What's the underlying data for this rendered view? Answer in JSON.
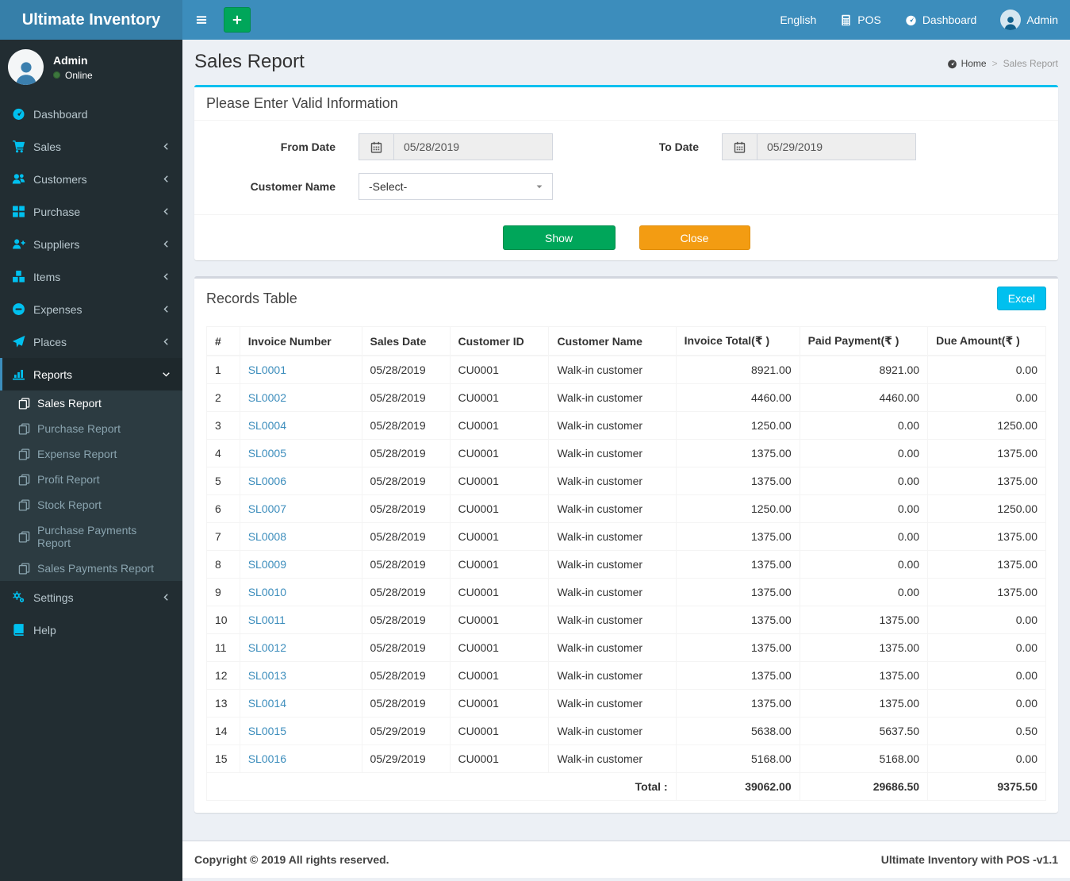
{
  "app": {
    "title": "Ultimate Inventory"
  },
  "navbar": {
    "language": "English",
    "pos_label": "POS",
    "dashboard_label": "Dashboard",
    "user_label": "Admin"
  },
  "user_panel": {
    "name": "Admin",
    "status": "Online"
  },
  "sidebar": {
    "items": [
      {
        "id": "dashboard",
        "label": "Dashboard",
        "icon": "speedometer-icon"
      },
      {
        "id": "sales",
        "label": "Sales",
        "icon": "cart-icon",
        "chevron": "left"
      },
      {
        "id": "customers",
        "label": "Customers",
        "icon": "users-icon",
        "chevron": "left"
      },
      {
        "id": "purchase",
        "label": "Purchase",
        "icon": "grid-icon",
        "chevron": "left"
      },
      {
        "id": "suppliers",
        "label": "Suppliers",
        "icon": "user-plus-icon",
        "chevron": "left"
      },
      {
        "id": "items",
        "label": "Items",
        "icon": "cubes-icon",
        "chevron": "left"
      },
      {
        "id": "expenses",
        "label": "Expenses",
        "icon": "minus-circle-icon",
        "chevron": "left"
      },
      {
        "id": "places",
        "label": "Places",
        "icon": "paper-plane-icon",
        "chevron": "left"
      },
      {
        "id": "reports",
        "label": "Reports",
        "icon": "bar-chart-icon",
        "chevron": "down",
        "active": true,
        "submenu": [
          {
            "id": "sales-report",
            "label": "Sales Report",
            "active": true
          },
          {
            "id": "purchase-report",
            "label": "Purchase Report"
          },
          {
            "id": "expense-report",
            "label": "Expense Report"
          },
          {
            "id": "profit-report",
            "label": "Profit Report"
          },
          {
            "id": "stock-report",
            "label": "Stock Report"
          },
          {
            "id": "purchase-payments-report",
            "label": "Purchase Payments Report"
          },
          {
            "id": "sales-payments-report",
            "label": "Sales Payments Report"
          }
        ]
      },
      {
        "id": "settings",
        "label": "Settings",
        "icon": "gears-icon",
        "chevron": "left"
      },
      {
        "id": "help",
        "label": "Help",
        "icon": "book-icon"
      }
    ]
  },
  "page": {
    "title": "Sales Report",
    "breadcrumb_home": "Home",
    "breadcrumb_sep": ">",
    "breadcrumb_current": "Sales Report"
  },
  "filter": {
    "title": "Please Enter Valid Information",
    "from_date": {
      "label": "From Date",
      "value": "05/28/2019"
    },
    "to_date": {
      "label": "To Date",
      "value": "05/29/2019"
    },
    "customer": {
      "label": "Customer Name",
      "value": "-Select-"
    },
    "show_button": "Show",
    "close_button": "Close"
  },
  "records": {
    "title": "Records Table",
    "excel_button": "Excel",
    "columns": [
      "#",
      "Invoice Number",
      "Sales Date",
      "Customer ID",
      "Customer Name",
      "Invoice Total(₹ )",
      "Paid Payment(₹ )",
      "Due Amount(₹ )"
    ],
    "rows": [
      [
        "1",
        "SL0001",
        "05/28/2019",
        "CU0001",
        "Walk-in customer",
        "8921.00",
        "8921.00",
        "0.00"
      ],
      [
        "2",
        "SL0002",
        "05/28/2019",
        "CU0001",
        "Walk-in customer",
        "4460.00",
        "4460.00",
        "0.00"
      ],
      [
        "3",
        "SL0004",
        "05/28/2019",
        "CU0001",
        "Walk-in customer",
        "1250.00",
        "0.00",
        "1250.00"
      ],
      [
        "4",
        "SL0005",
        "05/28/2019",
        "CU0001",
        "Walk-in customer",
        "1375.00",
        "0.00",
        "1375.00"
      ],
      [
        "5",
        "SL0006",
        "05/28/2019",
        "CU0001",
        "Walk-in customer",
        "1375.00",
        "0.00",
        "1375.00"
      ],
      [
        "6",
        "SL0007",
        "05/28/2019",
        "CU0001",
        "Walk-in customer",
        "1250.00",
        "0.00",
        "1250.00"
      ],
      [
        "7",
        "SL0008",
        "05/28/2019",
        "CU0001",
        "Walk-in customer",
        "1375.00",
        "0.00",
        "1375.00"
      ],
      [
        "8",
        "SL0009",
        "05/28/2019",
        "CU0001",
        "Walk-in customer",
        "1375.00",
        "0.00",
        "1375.00"
      ],
      [
        "9",
        "SL0010",
        "05/28/2019",
        "CU0001",
        "Walk-in customer",
        "1375.00",
        "0.00",
        "1375.00"
      ],
      [
        "10",
        "SL0011",
        "05/28/2019",
        "CU0001",
        "Walk-in customer",
        "1375.00",
        "1375.00",
        "0.00"
      ],
      [
        "11",
        "SL0012",
        "05/28/2019",
        "CU0001",
        "Walk-in customer",
        "1375.00",
        "1375.00",
        "0.00"
      ],
      [
        "12",
        "SL0013",
        "05/28/2019",
        "CU0001",
        "Walk-in customer",
        "1375.00",
        "1375.00",
        "0.00"
      ],
      [
        "13",
        "SL0014",
        "05/28/2019",
        "CU0001",
        "Walk-in customer",
        "1375.00",
        "1375.00",
        "0.00"
      ],
      [
        "14",
        "SL0015",
        "05/29/2019",
        "CU0001",
        "Walk-in customer",
        "5638.00",
        "5637.50",
        "0.50"
      ],
      [
        "15",
        "SL0016",
        "05/29/2019",
        "CU0001",
        "Walk-in customer",
        "5168.00",
        "5168.00",
        "0.00"
      ]
    ],
    "total_label": "Total :",
    "totals": [
      "39062.00",
      "29686.50",
      "9375.50"
    ]
  },
  "footer": {
    "left": "Copyright © 2019 All rights reserved.",
    "right": "Ultimate Inventory with POS -v1.1"
  },
  "colors": {
    "navbar": "#3c8dbc",
    "logo": "#367fa9",
    "sidebar": "#222d32",
    "submenu": "#2c3b41",
    "accent": "#00c0ef",
    "green": "#00a65a",
    "orange": "#f39c12",
    "link": "#3c8dbc",
    "content_bg": "#ecf0f5"
  }
}
